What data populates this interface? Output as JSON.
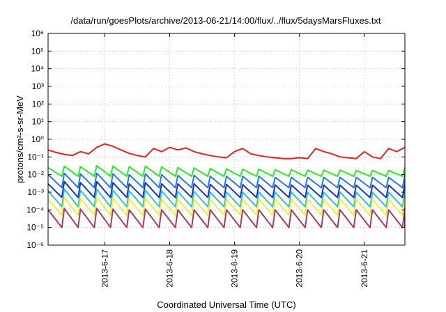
{
  "chart_data": {
    "type": "line",
    "title": "/data/run/goesPlots/archive/2013-06-21/14:00/flux/../flux/5daysMarsFluxes.txt",
    "xlabel": "Coordinated Universal Time (UTC)",
    "ylabel": "protons/cm²-s-sr-MeV",
    "y_scale": "log",
    "ylim_exponents": [
      -6,
      6
    ],
    "y_tick_labels": [
      "10⁻⁶",
      "10⁻⁵",
      "10⁻⁴",
      "10⁻³",
      "10⁻²",
      "10⁻¹",
      "10⁰",
      "10¹",
      "10²",
      "10³",
      "10⁴",
      "10⁵",
      "10⁶"
    ],
    "xlim": [
      "2013-06-16T03:00",
      "2013-06-21T15:00"
    ],
    "x_ticks": [
      "2013-6-17",
      "2013-6-18",
      "2013-6-19",
      "2013-6-20",
      "2013-6-21"
    ],
    "grid": "dotted",
    "legend": "none",
    "sawtooth_period_hours": 6,
    "series": [
      {
        "color": "#e8201a",
        "x": [
          "2013-06-16T03:00",
          "2013-06-16T06:00",
          "2013-06-16T09:00",
          "2013-06-16T12:00",
          "2013-06-16T15:00",
          "2013-06-16T18:00",
          "2013-06-16T21:00",
          "2013-06-17T00:00",
          "2013-06-17T03:00",
          "2013-06-17T06:00",
          "2013-06-17T09:00",
          "2013-06-17T12:00",
          "2013-06-17T15:00",
          "2013-06-17T18:00",
          "2013-06-17T21:00",
          "2013-06-18T00:00",
          "2013-06-18T03:00",
          "2013-06-18T06:00",
          "2013-06-18T09:00",
          "2013-06-18T12:00",
          "2013-06-18T15:00",
          "2013-06-18T18:00",
          "2013-06-18T21:00",
          "2013-06-19T00:00",
          "2013-06-19T03:00",
          "2013-06-19T06:00",
          "2013-06-19T09:00",
          "2013-06-19T12:00",
          "2013-06-19T15:00",
          "2013-06-19T18:00",
          "2013-06-19T21:00",
          "2013-06-20T00:00",
          "2013-06-20T03:00",
          "2013-06-20T06:00",
          "2013-06-20T09:00",
          "2013-06-20T12:00",
          "2013-06-20T15:00",
          "2013-06-20T18:00",
          "2013-06-20T21:00",
          "2013-06-21T00:00",
          "2013-06-21T03:00",
          "2013-06-21T06:00",
          "2013-06-21T09:00",
          "2013-06-21T12:00",
          "2013-06-21T15:00"
        ],
        "y": [
          0.25,
          0.18,
          0.14,
          0.12,
          0.2,
          0.15,
          0.35,
          0.55,
          0.4,
          0.25,
          0.16,
          0.12,
          0.1,
          0.3,
          0.2,
          0.35,
          0.25,
          0.32,
          0.2,
          0.15,
          0.12,
          0.1,
          0.09,
          0.2,
          0.3,
          0.15,
          0.12,
          0.1,
          0.09,
          0.08,
          0.08,
          0.09,
          0.08,
          0.3,
          0.2,
          0.15,
          0.1,
          0.09,
          0.08,
          0.2,
          0.1,
          0.08,
          0.3,
          0.2,
          0.35
        ]
      },
      {
        "color": "#22ee22",
        "x": [
          "2013-06-16T03:00",
          "2013-06-16T09:00",
          "2013-06-16T15:00",
          "2013-06-16T21:00",
          "2013-06-17T03:00",
          "2013-06-17T09:00",
          "2013-06-17T15:00",
          "2013-06-17T21:00",
          "2013-06-18T03:00",
          "2013-06-18T09:00",
          "2013-06-18T15:00",
          "2013-06-18T21:00",
          "2013-06-19T03:00",
          "2013-06-19T09:00",
          "2013-06-19T15:00",
          "2013-06-19T21:00",
          "2013-06-20T03:00",
          "2013-06-20T09:00",
          "2013-06-20T15:00",
          "2013-06-20T21:00",
          "2013-06-21T03:00",
          "2013-06-21T09:00",
          "2013-06-21T15:00"
        ],
        "y": [
          0.025,
          0.03,
          0.028,
          0.032,
          0.03,
          0.028,
          0.03,
          0.027,
          0.025,
          0.024,
          0.022,
          0.021,
          0.02,
          0.02,
          0.019,
          0.019,
          0.018,
          0.018,
          0.018,
          0.017,
          0.017,
          0.017,
          0.025
        ]
      },
      {
        "color": "#1f78f0",
        "x": [
          "2013-06-16T03:00",
          "2013-06-16T09:00",
          "2013-06-16T15:00",
          "2013-06-16T21:00",
          "2013-06-17T03:00",
          "2013-06-17T09:00",
          "2013-06-17T15:00",
          "2013-06-17T21:00",
          "2013-06-18T03:00",
          "2013-06-18T09:00",
          "2013-06-18T15:00",
          "2013-06-18T21:00",
          "2013-06-19T03:00",
          "2013-06-19T09:00",
          "2013-06-19T15:00",
          "2013-06-19T21:00",
          "2013-06-20T03:00",
          "2013-06-20T09:00",
          "2013-06-20T15:00",
          "2013-06-20T21:00",
          "2013-06-21T03:00",
          "2013-06-21T09:00",
          "2013-06-21T15:00"
        ],
        "y": [
          0.01,
          0.012,
          0.011,
          0.012,
          0.011,
          0.01,
          0.011,
          0.01,
          0.009,
          0.009,
          0.008,
          0.008,
          0.008,
          0.008,
          0.007,
          0.007,
          0.007,
          0.007,
          0.007,
          0.007,
          0.007,
          0.007,
          0.009
        ]
      },
      {
        "color": "#1a2fd0",
        "x": [
          "2013-06-16T03:00",
          "2013-06-16T09:00",
          "2013-06-16T15:00",
          "2013-06-16T21:00",
          "2013-06-17T03:00",
          "2013-06-17T09:00",
          "2013-06-17T15:00",
          "2013-06-17T21:00",
          "2013-06-18T03:00",
          "2013-06-18T09:00",
          "2013-06-18T15:00",
          "2013-06-18T21:00",
          "2013-06-19T03:00",
          "2013-06-19T09:00",
          "2013-06-19T15:00",
          "2013-06-19T21:00",
          "2013-06-20T03:00",
          "2013-06-20T09:00",
          "2013-06-20T15:00",
          "2013-06-20T21:00",
          "2013-06-21T03:00",
          "2013-06-21T09:00",
          "2013-06-21T15:00"
        ],
        "y": [
          0.003,
          0.004,
          0.0035,
          0.004,
          0.0035,
          0.003,
          0.0035,
          0.003,
          0.003,
          0.003,
          0.0028,
          0.0028,
          0.0027,
          0.0027,
          0.0026,
          0.0026,
          0.0025,
          0.0025,
          0.0025,
          0.0025,
          0.0025,
          0.0025,
          0.003
        ]
      },
      {
        "color": "#28c8c8",
        "x": [
          "2013-06-16T03:00",
          "2013-06-16T09:00",
          "2013-06-16T15:00",
          "2013-06-16T21:00",
          "2013-06-17T03:00",
          "2013-06-17T09:00",
          "2013-06-17T15:00",
          "2013-06-17T21:00",
          "2013-06-18T03:00",
          "2013-06-18T09:00",
          "2013-06-18T15:00",
          "2013-06-18T21:00",
          "2013-06-19T03:00",
          "2013-06-19T09:00",
          "2013-06-19T15:00",
          "2013-06-19T21:00",
          "2013-06-20T03:00",
          "2013-06-20T09:00",
          "2013-06-20T15:00",
          "2013-06-20T21:00",
          "2013-06-21T03:00",
          "2013-06-21T09:00",
          "2013-06-21T15:00"
        ],
        "y": [
          0.0012,
          0.0015,
          0.0013,
          0.0015,
          0.0013,
          0.0012,
          0.0013,
          0.0012,
          0.0011,
          0.0011,
          0.001,
          0.001,
          0.001,
          0.001,
          0.001,
          0.001,
          0.001,
          0.001,
          0.001,
          0.001,
          0.001,
          0.001,
          0.0012
        ]
      },
      {
        "color": "#f0f028",
        "x": [
          "2013-06-16T03:00",
          "2013-06-16T09:00",
          "2013-06-16T15:00",
          "2013-06-16T21:00",
          "2013-06-17T03:00",
          "2013-06-17T09:00",
          "2013-06-17T15:00",
          "2013-06-17T21:00",
          "2013-06-18T03:00",
          "2013-06-18T09:00",
          "2013-06-18T15:00",
          "2013-06-18T21:00",
          "2013-06-19T03:00",
          "2013-06-19T09:00",
          "2013-06-19T15:00",
          "2013-06-19T21:00",
          "2013-06-20T03:00",
          "2013-06-20T09:00",
          "2013-06-20T15:00",
          "2013-06-20T21:00",
          "2013-06-21T03:00",
          "2013-06-21T09:00",
          "2013-06-21T15:00"
        ],
        "y": [
          0.0004,
          0.0005,
          0.00045,
          0.0005,
          0.00045,
          0.0004,
          0.00045,
          0.0004,
          0.0004,
          0.0004,
          0.0004,
          0.0004,
          0.0004,
          0.0004,
          0.0004,
          0.0004,
          0.0004,
          0.0004,
          0.0004,
          0.0004,
          0.0004,
          0.0004,
          0.0005
        ]
      },
      {
        "color": "#a8386a",
        "x": [
          "2013-06-16T03:00",
          "2013-06-16T09:00",
          "2013-06-16T15:00",
          "2013-06-16T21:00",
          "2013-06-17T03:00",
          "2013-06-17T09:00",
          "2013-06-17T15:00",
          "2013-06-17T21:00",
          "2013-06-18T03:00",
          "2013-06-18T09:00",
          "2013-06-18T15:00",
          "2013-06-18T21:00",
          "2013-06-19T03:00",
          "2013-06-19T09:00",
          "2013-06-19T15:00",
          "2013-06-19T21:00",
          "2013-06-20T03:00",
          "2013-06-20T09:00",
          "2013-06-20T15:00",
          "2013-06-20T21:00",
          "2013-06-21T03:00",
          "2013-06-21T09:00",
          "2013-06-21T15:00"
        ],
        "y": [
          0.0001,
          0.00012,
          0.00011,
          0.00012,
          0.00011,
          0.0001,
          0.00011,
          0.0001,
          0.0001,
          0.0001,
          0.0001,
          0.0001,
          0.0001,
          0.0001,
          0.0001,
          0.0001,
          0.0001,
          0.0001,
          0.0001,
          0.0001,
          0.0001,
          0.0001,
          0.00012
        ]
      }
    ],
    "sawtooth_low_y": [
      null,
      0.008,
      0.0018,
      0.0005,
      0.00015,
      5e-05,
      1e-05
    ]
  }
}
